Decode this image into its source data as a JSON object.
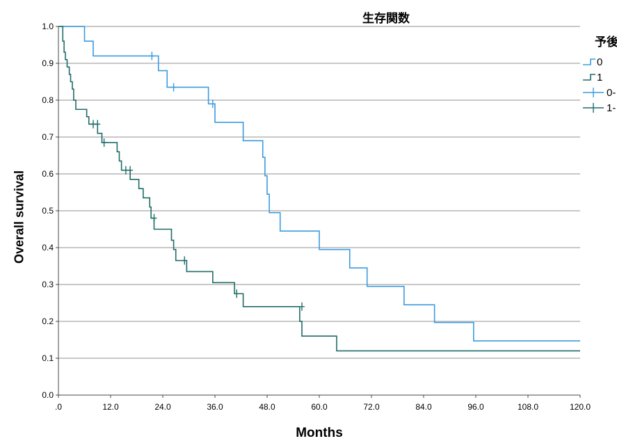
{
  "chart_data": {
    "type": "line",
    "subtype": "kaplan-meier-step",
    "title": "生存関数",
    "xlabel": "Months",
    "ylabel": "Overall survival",
    "xlim": [
      0,
      120
    ],
    "ylim": [
      0,
      1
    ],
    "x_ticks": [
      ".0",
      "12.0",
      "24.0",
      "36.0",
      "48.0",
      "60.0",
      "72.0",
      "84.0",
      "96.0",
      "108.0",
      "120.0"
    ],
    "y_ticks": [
      "0.0",
      "0.1",
      "0.2",
      "0.3",
      "0.4",
      "0.5",
      "0.6",
      "0.7",
      "0.8",
      "0.9",
      "1.0"
    ],
    "grid": "horizontal",
    "legend_title": "予後",
    "legend_position": "right",
    "legend_entries": [
      "0",
      "1",
      "0-",
      "1-"
    ],
    "series": [
      {
        "name": "0",
        "color": "#3a9be0",
        "x": [
          0,
          6,
          8,
          23,
          25,
          27.5,
          34.5,
          36,
          42.5,
          47,
          47.5,
          48,
          48.5,
          51,
          60,
          67,
          71,
          79.5,
          86.5,
          95.5,
          120
        ],
        "y": [
          1.0,
          0.96,
          0.92,
          0.88,
          0.835,
          0.835,
          0.79,
          0.74,
          0.69,
          0.645,
          0.595,
          0.545,
          0.495,
          0.445,
          0.395,
          0.345,
          0.295,
          0.245,
          0.197,
          0.147,
          0.147
        ],
        "censored": [
          {
            "x": 21.5,
            "y": 0.92
          },
          {
            "x": 26.5,
            "y": 0.835
          },
          {
            "x": 35.5,
            "y": 0.79
          }
        ]
      },
      {
        "name": "1",
        "color": "#1f6b68",
        "x": [
          0,
          1,
          1.3,
          1.6,
          2,
          2.5,
          2.8,
          3.2,
          3.5,
          4,
          6.5,
          7,
          7.5,
          9,
          10,
          13.5,
          14,
          14.5,
          16.5,
          18.5,
          19.5,
          21,
          21.3,
          22,
          26,
          26.5,
          27,
          29.5,
          35.5,
          40.5,
          42.5,
          55.5,
          56,
          64,
          120
        ],
        "y": [
          1.0,
          0.96,
          0.93,
          0.91,
          0.89,
          0.87,
          0.85,
          0.83,
          0.8,
          0.775,
          0.755,
          0.735,
          0.735,
          0.71,
          0.685,
          0.66,
          0.635,
          0.61,
          0.585,
          0.56,
          0.535,
          0.51,
          0.48,
          0.45,
          0.42,
          0.395,
          0.365,
          0.335,
          0.305,
          0.275,
          0.24,
          0.2,
          0.16,
          0.12,
          0.12
        ],
        "censored": [
          {
            "x": 8,
            "y": 0.735
          },
          {
            "x": 9,
            "y": 0.735
          },
          {
            "x": 10.5,
            "y": 0.685
          },
          {
            "x": 15.5,
            "y": 0.61
          },
          {
            "x": 16.5,
            "y": 0.61
          },
          {
            "x": 22,
            "y": 0.48
          },
          {
            "x": 29,
            "y": 0.365
          },
          {
            "x": 41,
            "y": 0.275
          },
          {
            "x": 56,
            "y": 0.24
          }
        ]
      }
    ]
  }
}
